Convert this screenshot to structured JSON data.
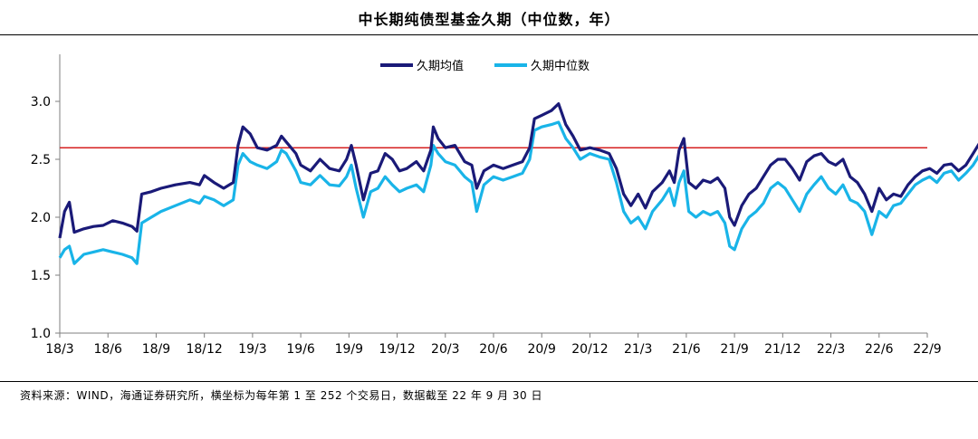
{
  "title": "中长期纯债型基金久期（中位数，年）",
  "source": "资料来源：WIND，海通证券研究所，横坐标为每年第 1 至 252 个交易日，数据截至 22 年 9 月 30 日",
  "colors": {
    "mean": "#1a1a78",
    "median": "#19b4e8",
    "reference": "#d62020",
    "axis": "#7f7f7f"
  },
  "chart_data": {
    "type": "line",
    "title": "中长期纯债型基金久期（中位数，年）",
    "xlabel": "",
    "ylabel": "",
    "x_ticks": [
      "18/3",
      "18/6",
      "18/9",
      "18/12",
      "19/3",
      "19/6",
      "19/9",
      "19/12",
      "20/3",
      "20/6",
      "20/9",
      "20/12",
      "21/3",
      "21/6",
      "21/9",
      "21/12",
      "22/3",
      "22/6",
      "22/9"
    ],
    "ylim": [
      1.0,
      3.5
    ],
    "y_ticks": [
      1.0,
      1.5,
      2.0,
      2.5,
      3.0
    ],
    "y_tick_labels": [
      "1.0",
      "1.5",
      "2.0",
      "2.5",
      "3.0"
    ],
    "reference_line": 2.6,
    "legend": "top-center",
    "grid": false,
    "series": [
      {
        "name": "久期均值",
        "color": "#1a1a78",
        "points": [
          [
            0.0,
            1.82
          ],
          [
            0.1,
            2.05
          ],
          [
            0.2,
            2.13
          ],
          [
            0.3,
            1.87
          ],
          [
            0.5,
            1.9
          ],
          [
            0.7,
            1.92
          ],
          [
            0.9,
            1.93
          ],
          [
            1.1,
            1.97
          ],
          [
            1.3,
            1.95
          ],
          [
            1.5,
            1.92
          ],
          [
            1.6,
            1.88
          ],
          [
            1.7,
            2.2
          ],
          [
            1.9,
            2.22
          ],
          [
            2.1,
            2.25
          ],
          [
            2.4,
            2.28
          ],
          [
            2.7,
            2.3
          ],
          [
            2.9,
            2.28
          ],
          [
            3.0,
            2.36
          ],
          [
            3.2,
            2.3
          ],
          [
            3.4,
            2.25
          ],
          [
            3.6,
            2.3
          ],
          [
            3.7,
            2.62
          ],
          [
            3.8,
            2.78
          ],
          [
            3.95,
            2.72
          ],
          [
            4.1,
            2.6
          ],
          [
            4.3,
            2.58
          ],
          [
            4.5,
            2.62
          ],
          [
            4.6,
            2.7
          ],
          [
            4.7,
            2.65
          ],
          [
            4.9,
            2.55
          ],
          [
            5.0,
            2.45
          ],
          [
            5.2,
            2.4
          ],
          [
            5.4,
            2.5
          ],
          [
            5.6,
            2.42
          ],
          [
            5.8,
            2.4
          ],
          [
            5.95,
            2.5
          ],
          [
            6.05,
            2.62
          ],
          [
            6.15,
            2.45
          ],
          [
            6.3,
            2.15
          ],
          [
            6.45,
            2.38
          ],
          [
            6.6,
            2.4
          ],
          [
            6.75,
            2.55
          ],
          [
            6.9,
            2.5
          ],
          [
            7.05,
            2.4
          ],
          [
            7.2,
            2.42
          ],
          [
            7.4,
            2.48
          ],
          [
            7.55,
            2.4
          ],
          [
            7.7,
            2.58
          ],
          [
            7.75,
            2.78
          ],
          [
            7.85,
            2.68
          ],
          [
            8.0,
            2.6
          ],
          [
            8.2,
            2.62
          ],
          [
            8.4,
            2.48
          ],
          [
            8.55,
            2.45
          ],
          [
            8.65,
            2.25
          ],
          [
            8.8,
            2.4
          ],
          [
            9.0,
            2.45
          ],
          [
            9.2,
            2.42
          ],
          [
            9.4,
            2.45
          ],
          [
            9.6,
            2.48
          ],
          [
            9.75,
            2.6
          ],
          [
            9.85,
            2.85
          ],
          [
            10.0,
            2.88
          ],
          [
            10.2,
            2.92
          ],
          [
            10.35,
            2.98
          ],
          [
            10.5,
            2.8
          ],
          [
            10.65,
            2.7
          ],
          [
            10.8,
            2.58
          ],
          [
            11.0,
            2.6
          ],
          [
            11.2,
            2.58
          ],
          [
            11.4,
            2.55
          ],
          [
            11.55,
            2.42
          ],
          [
            11.7,
            2.2
          ],
          [
            11.85,
            2.1
          ],
          [
            12.0,
            2.2
          ],
          [
            12.15,
            2.08
          ],
          [
            12.3,
            2.22
          ],
          [
            12.5,
            2.3
          ],
          [
            12.65,
            2.4
          ],
          [
            12.75,
            2.3
          ],
          [
            12.85,
            2.58
          ],
          [
            12.95,
            2.68
          ],
          [
            13.05,
            2.3
          ],
          [
            13.2,
            2.25
          ],
          [
            13.35,
            2.32
          ],
          [
            13.5,
            2.3
          ],
          [
            13.65,
            2.34
          ],
          [
            13.8,
            2.25
          ],
          [
            13.9,
            2.0
          ],
          [
            14.0,
            1.93
          ],
          [
            14.15,
            2.1
          ],
          [
            14.3,
            2.2
          ],
          [
            14.45,
            2.25
          ],
          [
            14.6,
            2.35
          ],
          [
            14.75,
            2.45
          ],
          [
            14.9,
            2.5
          ],
          [
            15.05,
            2.5
          ],
          [
            15.2,
            2.42
          ],
          [
            15.35,
            2.32
          ],
          [
            15.5,
            2.48
          ],
          [
            15.65,
            2.53
          ],
          [
            15.8,
            2.55
          ],
          [
            15.95,
            2.48
          ],
          [
            16.1,
            2.45
          ],
          [
            16.25,
            2.5
          ],
          [
            16.4,
            2.35
          ],
          [
            16.55,
            2.3
          ],
          [
            16.7,
            2.2
          ],
          [
            16.85,
            2.05
          ],
          [
            17.0,
            2.25
          ],
          [
            17.15,
            2.15
          ],
          [
            17.3,
            2.2
          ],
          [
            17.45,
            2.18
          ],
          [
            17.6,
            2.28
          ],
          [
            17.75,
            2.35
          ],
          [
            17.9,
            2.4
          ],
          [
            18.05,
            2.42
          ],
          [
            18.2,
            2.38
          ],
          [
            18.35,
            2.45
          ],
          [
            18.5,
            2.46
          ],
          [
            18.65,
            2.4
          ],
          [
            18.8,
            2.45
          ],
          [
            18.95,
            2.55
          ],
          [
            19.1,
            2.65
          ],
          [
            19.25,
            2.72
          ],
          [
            19.4,
            2.8
          ],
          [
            19.55,
            2.78
          ],
          [
            19.7,
            2.75
          ]
        ]
      },
      {
        "name": "久期中位数",
        "color": "#19b4e8",
        "points": [
          [
            0.0,
            1.65
          ],
          [
            0.1,
            1.72
          ],
          [
            0.2,
            1.75
          ],
          [
            0.3,
            1.6
          ],
          [
            0.5,
            1.68
          ],
          [
            0.7,
            1.7
          ],
          [
            0.9,
            1.72
          ],
          [
            1.1,
            1.7
          ],
          [
            1.3,
            1.68
          ],
          [
            1.5,
            1.65
          ],
          [
            1.6,
            1.6
          ],
          [
            1.7,
            1.95
          ],
          [
            1.9,
            2.0
          ],
          [
            2.1,
            2.05
          ],
          [
            2.4,
            2.1
          ],
          [
            2.7,
            2.15
          ],
          [
            2.9,
            2.12
          ],
          [
            3.0,
            2.18
          ],
          [
            3.2,
            2.15
          ],
          [
            3.4,
            2.1
          ],
          [
            3.6,
            2.15
          ],
          [
            3.7,
            2.45
          ],
          [
            3.8,
            2.55
          ],
          [
            3.95,
            2.48
          ],
          [
            4.1,
            2.45
          ],
          [
            4.3,
            2.42
          ],
          [
            4.5,
            2.48
          ],
          [
            4.6,
            2.58
          ],
          [
            4.7,
            2.55
          ],
          [
            4.9,
            2.4
          ],
          [
            5.0,
            2.3
          ],
          [
            5.2,
            2.28
          ],
          [
            5.4,
            2.36
          ],
          [
            5.6,
            2.28
          ],
          [
            5.8,
            2.27
          ],
          [
            5.95,
            2.35
          ],
          [
            6.05,
            2.45
          ],
          [
            6.15,
            2.25
          ],
          [
            6.3,
            2.0
          ],
          [
            6.45,
            2.22
          ],
          [
            6.6,
            2.25
          ],
          [
            6.75,
            2.35
          ],
          [
            6.9,
            2.28
          ],
          [
            7.05,
            2.22
          ],
          [
            7.2,
            2.25
          ],
          [
            7.4,
            2.28
          ],
          [
            7.55,
            2.22
          ],
          [
            7.7,
            2.45
          ],
          [
            7.75,
            2.62
          ],
          [
            7.85,
            2.55
          ],
          [
            8.0,
            2.48
          ],
          [
            8.2,
            2.45
          ],
          [
            8.4,
            2.35
          ],
          [
            8.55,
            2.3
          ],
          [
            8.65,
            2.05
          ],
          [
            8.8,
            2.28
          ],
          [
            9.0,
            2.35
          ],
          [
            9.2,
            2.32
          ],
          [
            9.4,
            2.35
          ],
          [
            9.6,
            2.38
          ],
          [
            9.75,
            2.5
          ],
          [
            9.85,
            2.75
          ],
          [
            10.0,
            2.78
          ],
          [
            10.2,
            2.8
          ],
          [
            10.35,
            2.82
          ],
          [
            10.5,
            2.68
          ],
          [
            10.65,
            2.6
          ],
          [
            10.8,
            2.5
          ],
          [
            11.0,
            2.55
          ],
          [
            11.2,
            2.52
          ],
          [
            11.4,
            2.5
          ],
          [
            11.55,
            2.3
          ],
          [
            11.7,
            2.05
          ],
          [
            11.85,
            1.95
          ],
          [
            12.0,
            2.0
          ],
          [
            12.15,
            1.9
          ],
          [
            12.3,
            2.05
          ],
          [
            12.5,
            2.15
          ],
          [
            12.65,
            2.25
          ],
          [
            12.75,
            2.1
          ],
          [
            12.85,
            2.3
          ],
          [
            12.95,
            2.4
          ],
          [
            13.05,
            2.05
          ],
          [
            13.2,
            2.0
          ],
          [
            13.35,
            2.05
          ],
          [
            13.5,
            2.02
          ],
          [
            13.65,
            2.05
          ],
          [
            13.8,
            1.95
          ],
          [
            13.9,
            1.75
          ],
          [
            14.0,
            1.72
          ],
          [
            14.15,
            1.9
          ],
          [
            14.3,
            2.0
          ],
          [
            14.45,
            2.05
          ],
          [
            14.6,
            2.12
          ],
          [
            14.75,
            2.25
          ],
          [
            14.9,
            2.3
          ],
          [
            15.05,
            2.25
          ],
          [
            15.2,
            2.15
          ],
          [
            15.35,
            2.05
          ],
          [
            15.5,
            2.2
          ],
          [
            15.65,
            2.28
          ],
          [
            15.8,
            2.35
          ],
          [
            15.95,
            2.25
          ],
          [
            16.1,
            2.2
          ],
          [
            16.25,
            2.28
          ],
          [
            16.4,
            2.15
          ],
          [
            16.55,
            2.12
          ],
          [
            16.7,
            2.05
          ],
          [
            16.85,
            1.85
          ],
          [
            17.0,
            2.05
          ],
          [
            17.15,
            2.0
          ],
          [
            17.3,
            2.1
          ],
          [
            17.45,
            2.12
          ],
          [
            17.6,
            2.2
          ],
          [
            17.75,
            2.28
          ],
          [
            17.9,
            2.32
          ],
          [
            18.05,
            2.35
          ],
          [
            18.2,
            2.3
          ],
          [
            18.35,
            2.38
          ],
          [
            18.5,
            2.4
          ],
          [
            18.65,
            2.32
          ],
          [
            18.8,
            2.38
          ],
          [
            18.95,
            2.45
          ],
          [
            19.1,
            2.55
          ],
          [
            19.25,
            2.62
          ],
          [
            19.4,
            2.65
          ],
          [
            19.55,
            2.6
          ],
          [
            19.7,
            2.58
          ]
        ]
      }
    ]
  }
}
